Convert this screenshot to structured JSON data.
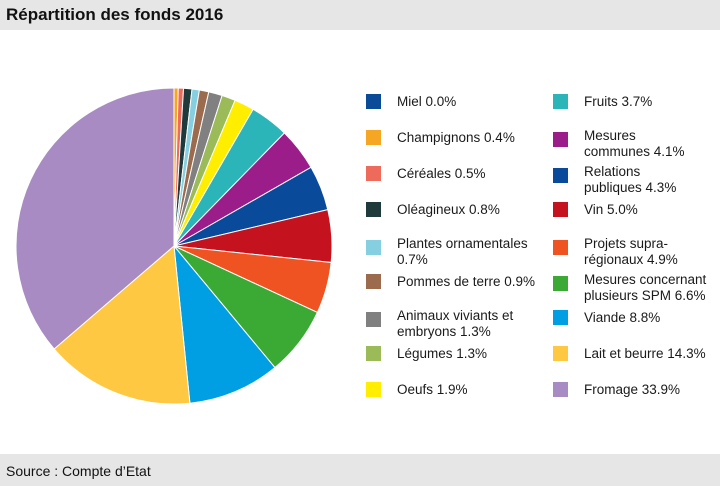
{
  "title": "Répartition des fonds 2016",
  "source": "Source : Compte d’Etat",
  "chart_data": {
    "type": "pie",
    "title": "Répartition des fonds 2016",
    "start_angle_deg": 0,
    "direction": "clockwise",
    "legend_position": "right",
    "slices": [
      {
        "label": "Miel 0.0%",
        "value": 0.0,
        "color": "#0a4a96"
      },
      {
        "label": "Champignons 0.4%",
        "value": 0.4,
        "color": "#f5a623"
      },
      {
        "label": "Céréales 0.5%",
        "value": 0.5,
        "color": "#ee6a5b"
      },
      {
        "label": "Oléagineux 0.8%",
        "value": 0.8,
        "color": "#1e3a3a"
      },
      {
        "label": "Plantes ornamentales\n0.7%",
        "value": 0.7,
        "color": "#86cfe0"
      },
      {
        "label": "Pommes de terre 0.9%",
        "value": 0.9,
        "color": "#9c6b4e"
      },
      {
        "label": "Animaux viviants et\nembryons 1.3%",
        "value": 1.3,
        "color": "#808080"
      },
      {
        "label": "Légumes 1.3%",
        "value": 1.3,
        "color": "#9bbb59"
      },
      {
        "label": "Oeufs 1.9%",
        "value": 1.9,
        "color": "#ffee00"
      },
      {
        "label": "Fruits 3.7%",
        "value": 3.7,
        "color": "#2bb5b8"
      },
      {
        "label": "Mesures\ncommunes 4.1%",
        "value": 4.1,
        "color": "#9b1d8a"
      },
      {
        "label": "Relations\npubliques 4.3%",
        "value": 4.3,
        "color": "#0a4a9a"
      },
      {
        "label": "Vin 5.0%",
        "value": 5.0,
        "color": "#c4121f"
      },
      {
        "label": "Projets supra-\nrégionaux 4.9%",
        "value": 4.9,
        "color": "#ef5322"
      },
      {
        "label": "Mesures concernant\nplusieurs SPM 6.6%",
        "value": 6.6,
        "color": "#3aaa35"
      },
      {
        "label": "Viande 8.8%",
        "value": 8.8,
        "color": "#009fe3"
      },
      {
        "label": "Lait et beurre 14.3%",
        "value": 14.3,
        "color": "#ffc843"
      },
      {
        "label": "Fromage 33.9%",
        "value": 33.9,
        "color": "#a88bc2"
      }
    ]
  }
}
